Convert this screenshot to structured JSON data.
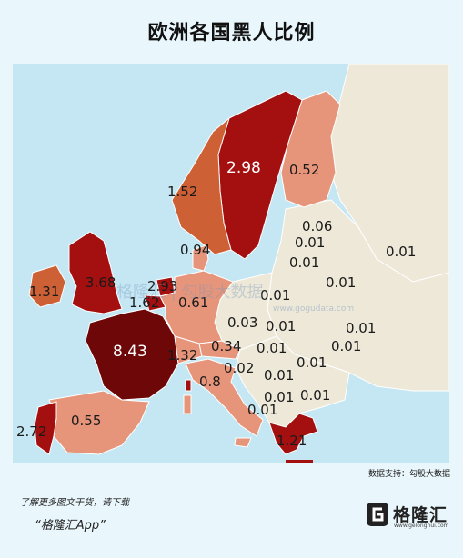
{
  "title": "欧洲各国黑人比例",
  "source": "数据支持：勾股大数据",
  "promo": {
    "line1": "了解更多图文干货，请下载",
    "line2": "“格隆汇App”"
  },
  "logo": {
    "name": "格隆汇",
    "url": "www.gelonghui.com",
    "icon": "gelonghui-logo-icon"
  },
  "watermark": {
    "text": "格隆汇  |  勾股大数据",
    "url": "www.gogudata.com"
  },
  "colors": {
    "sea": "#c4e7f3",
    "background": "#e9f6fb",
    "land_none": "#ede8d8",
    "low": "#e6957a",
    "mid": "#cd6035",
    "high": "#a41010",
    "highest": "#6e0707"
  },
  "values": {
    "france": "8.43",
    "uk": "3.68",
    "sweden": "2.98",
    "belgium": "2.93",
    "portugal": "2.72",
    "netherlands": "1.62",
    "norway": "1.52",
    "switzerland": "1.32",
    "ireland": "1.31",
    "greece": "1.21",
    "denmark": "0.94",
    "italy": "0.8",
    "germany": "0.61",
    "spain": "0.55",
    "finland": "0.52",
    "austria": "0.34",
    "estonia": "0.06",
    "czech": "0.03",
    "slovenia": "0.02",
    "latvia": "0.01",
    "lithuania": "0.01",
    "belarus": "0.01",
    "russia": "0.01",
    "poland": "0.01",
    "ukraine": "0.01",
    "slovakia": "0.01",
    "hungary": "0.01",
    "moldova": "0.01",
    "romania": "0.01",
    "croatia": "0.01",
    "serbia": "0.01",
    "bulgaria": "0.01",
    "macedonia": "0.01"
  }
}
